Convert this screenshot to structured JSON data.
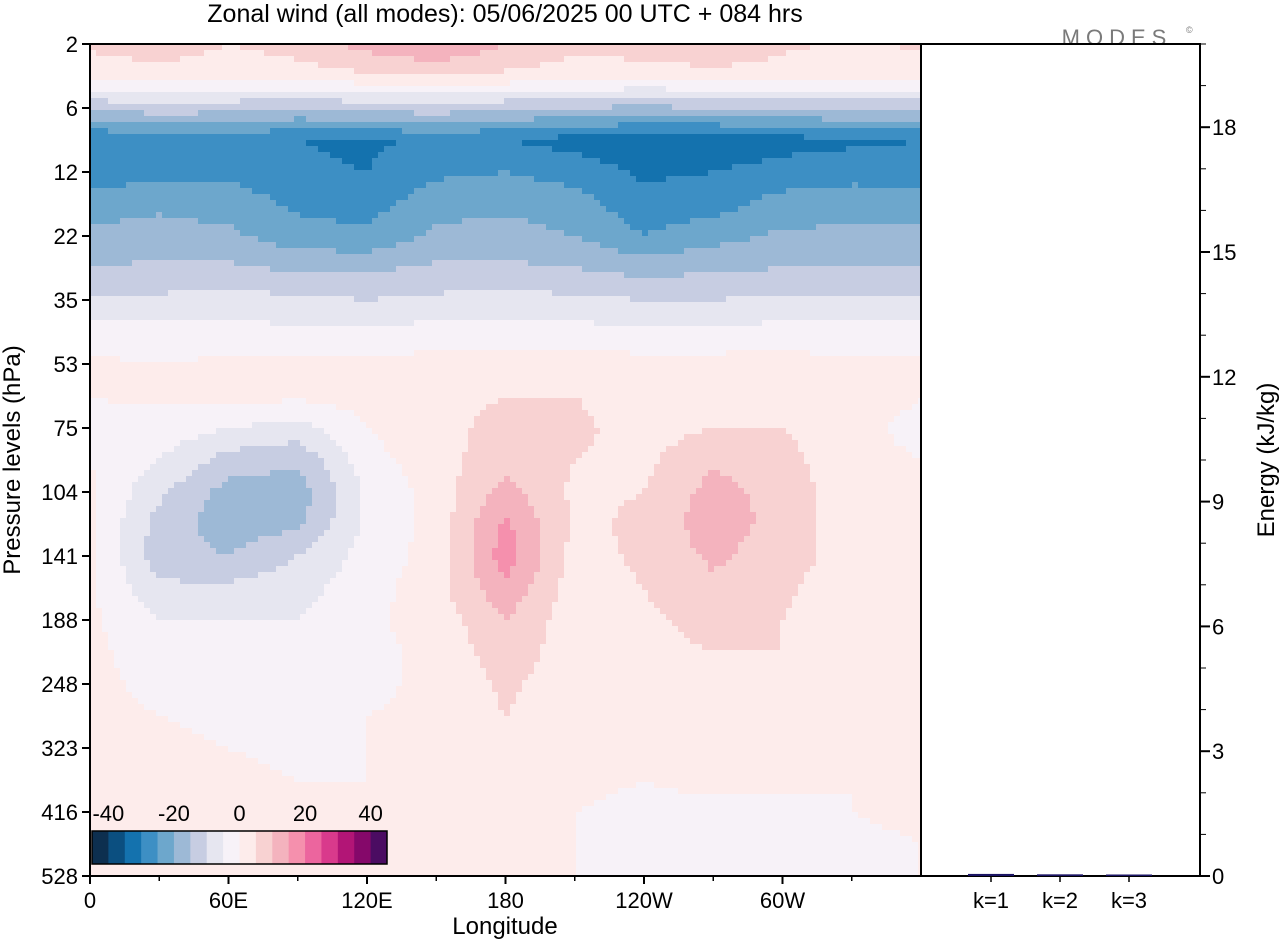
{
  "title": "Zonal wind (all modes):  05/06/2025  00 UTC  + 084 hrs",
  "watermark": "MODES",
  "watermark_mark": "©",
  "chart_data": [
    {
      "type": "heatmap",
      "title": "Zonal wind (all modes):  05/06/2025  00 UTC  + 084 hrs",
      "xlabel": "Longitude",
      "ylabel": "Pressure levels (hPa)",
      "x_ticks": [
        "0",
        "60E",
        "120E",
        "180",
        "120W",
        "60W"
      ],
      "y_ticks": [
        "2",
        "6",
        "12",
        "22",
        "35",
        "53",
        "75",
        "104",
        "141",
        "188",
        "248",
        "323",
        "416",
        "528"
      ],
      "colorbar": {
        "labels": [
          "-40",
          "-20",
          "0",
          "20",
          "40"
        ],
        "range": [
          -45,
          45
        ],
        "step": 5,
        "colors": [
          "#0d2f4f",
          "#0b4f80",
          "#1472ae",
          "#3d8fc4",
          "#6da7cc",
          "#9db9d6",
          "#c7cde2",
          "#e6e6f0",
          "#f7f2f8",
          "#fdeceb",
          "#f8d2d2",
          "#f4b3be",
          "#f590ad",
          "#ec659e",
          "#d93a8c",
          "#b21576",
          "#85086a",
          "#4b0c62"
        ]
      },
      "field_description_note": null,
      "field_rows": [
        {
          "level": "2",
          "zonal": [
            6,
            8,
            5,
            7,
            12,
            16,
            10,
            6,
            8,
            10,
            6,
            4
          ]
        },
        {
          "level": "4",
          "zonal": [
            2,
            3,
            2,
            3,
            4,
            5,
            4,
            3,
            2,
            3,
            3,
            2
          ]
        },
        {
          "level": "6",
          "zonal": [
            -14,
            -12,
            -13,
            -15,
            -13,
            -12,
            -14,
            -15,
            -16,
            -15,
            -14,
            -14
          ]
        },
        {
          "level": "9",
          "zonal": [
            -30,
            -28,
            -28,
            -30,
            -31,
            -29,
            -30,
            -32,
            -34,
            -34,
            -32,
            -31
          ]
        },
        {
          "level": "12",
          "zonal": [
            -28,
            -27,
            -26,
            -29,
            -30,
            -26,
            -25,
            -27,
            -31,
            -30,
            -28,
            -27
          ]
        },
        {
          "level": "17",
          "zonal": [
            -22,
            -21,
            -22,
            -26,
            -27,
            -22,
            -21,
            -23,
            -28,
            -27,
            -23,
            -22
          ]
        },
        {
          "level": "22",
          "zonal": [
            -19,
            -18,
            -19,
            -23,
            -24,
            -19,
            -18,
            -20,
            -25,
            -22,
            -19,
            -19
          ]
        },
        {
          "level": "28",
          "zonal": [
            -15,
            -14,
            -14,
            -16,
            -16,
            -14,
            -14,
            -15,
            -17,
            -16,
            -15,
            -15
          ]
        },
        {
          "level": "35",
          "zonal": [
            -9,
            -9,
            -8,
            -9,
            -10,
            -9,
            -8,
            -9,
            -10,
            -10,
            -9,
            -9
          ]
        },
        {
          "level": "43",
          "zonal": [
            -3,
            -3,
            -3,
            -4,
            -4,
            -3,
            -3,
            -3,
            -4,
            -4,
            -3,
            -3
          ]
        },
        {
          "level": "53",
          "zonal": [
            1,
            0,
            1,
            1,
            1,
            2,
            2,
            2,
            2,
            2,
            2,
            1
          ]
        },
        {
          "level": "64",
          "zonal": [
            0,
            1,
            2,
            1,
            2,
            4,
            5,
            5,
            3,
            4,
            3,
            2
          ]
        },
        {
          "level": "75",
          "zonal": [
            -1,
            -2,
            -5,
            -7,
            0,
            4,
            6,
            6,
            3,
            5,
            5,
            1
          ]
        },
        {
          "level": "88",
          "zonal": [
            0,
            -5,
            -12,
            -14,
            -2,
            3,
            8,
            5,
            4,
            9,
            7,
            1
          ]
        },
        {
          "level": "104",
          "zonal": [
            1,
            -9,
            -17,
            -18,
            -4,
            2,
            12,
            4,
            5,
            12,
            8,
            2
          ]
        },
        {
          "level": "121",
          "zonal": [
            1,
            -12,
            -18,
            -16,
            -4,
            2,
            16,
            4,
            6,
            13,
            8,
            2
          ]
        },
        {
          "level": "141",
          "zonal": [
            1,
            -13,
            -15,
            -10,
            -3,
            2,
            18,
            3,
            6,
            11,
            7,
            3
          ]
        },
        {
          "level": "164",
          "zonal": [
            1,
            -9,
            -9,
            -7,
            -2,
            3,
            14,
            2,
            5,
            9,
            6,
            2
          ]
        },
        {
          "level": "188",
          "zonal": [
            1,
            -5,
            -5,
            -5,
            -1,
            2,
            10,
            2,
            4,
            7,
            5,
            2
          ]
        },
        {
          "level": "218",
          "zonal": [
            1,
            -2,
            -4,
            -4,
            -1,
            1,
            8,
            2,
            3,
            5,
            5,
            1
          ]
        },
        {
          "level": "248",
          "zonal": [
            1,
            -1,
            -2,
            -3,
            -1,
            1,
            6,
            2,
            2,
            4,
            3,
            1
          ]
        },
        {
          "level": "285",
          "zonal": [
            1,
            0,
            -1,
            -2,
            0,
            1,
            5,
            1,
            1,
            2,
            2,
            1
          ]
        },
        {
          "level": "323",
          "zonal": [
            1,
            1,
            0,
            -1,
            0,
            1,
            3,
            1,
            1,
            1,
            1,
            1
          ]
        },
        {
          "level": "370",
          "zonal": [
            1,
            1,
            1,
            0,
            0,
            1,
            1,
            1,
            0,
            1,
            1,
            0
          ]
        },
        {
          "level": "416",
          "zonal": [
            1,
            1,
            1,
            0,
            0,
            0,
            0,
            0,
            -1,
            -1,
            -1,
            0
          ]
        },
        {
          "level": "470",
          "zonal": [
            0,
            0,
            1,
            0,
            0,
            0,
            0,
            0,
            -1,
            -2,
            -2,
            -1
          ]
        },
        {
          "level": "528",
          "zonal": [
            0,
            0,
            0,
            0,
            0,
            0,
            0,
            0,
            -1,
            -2,
            -1,
            0
          ]
        }
      ],
      "field_longitudes_deg": [
        0,
        30,
        60,
        90,
        120,
        150,
        180,
        210,
        240,
        270,
        300,
        330
      ]
    },
    {
      "type": "bar",
      "ylabel": "Energy (kJ/kg)",
      "categories": [
        "k=1",
        "k=2",
        "k=3"
      ],
      "values": [
        0.05,
        0.04,
        0.03
      ],
      "ylim": [
        0,
        20
      ],
      "y_ticks": [
        "0",
        "3",
        "6",
        "9",
        "12",
        "15",
        "18"
      ],
      "bar_color": "#1b1464"
    }
  ]
}
